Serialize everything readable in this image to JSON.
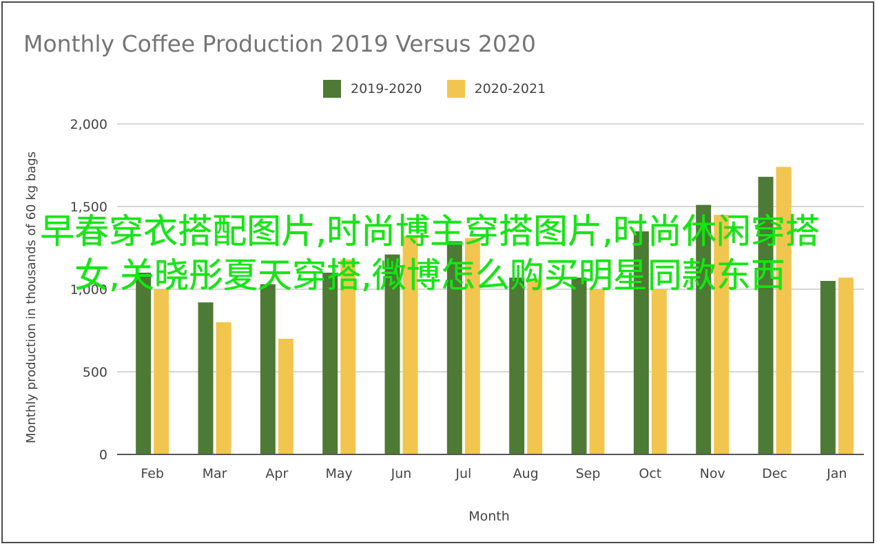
{
  "chart_data": {
    "type": "bar",
    "title": "Monthly Coffee Production 2019 Versus 2020",
    "xlabel": "Month",
    "ylabel": "Monthly production in thousands of 60 kg bags",
    "categories": [
      "Feb",
      "Mar",
      "Apr",
      "May",
      "Jun",
      "Jul",
      "Aug",
      "Sep",
      "Oct",
      "Nov",
      "Dec",
      "Jan"
    ],
    "series": [
      {
        "name": "2019-2020",
        "color": "#4d7a34",
        "values": [
          1100,
          920,
          1030,
          1100,
          1210,
          1290,
          1070,
          1070,
          1350,
          1510,
          1680,
          1050
        ]
      },
      {
        "name": "2020-2021",
        "color": "#f2c64e",
        "values": [
          1000,
          800,
          700,
          1180,
          1320,
          1310,
          1060,
          1000,
          1000,
          1450,
          1740,
          1070
        ]
      }
    ],
    "ylim": [
      0,
      2000
    ],
    "yticks": [
      0,
      500,
      1000,
      1500,
      2000
    ],
    "ytick_labels": [
      "0",
      "500",
      "1,000",
      "1,500",
      "2,000"
    ],
    "grid": true,
    "legend_position": "top-center"
  },
  "overlay": {
    "text": "早春穿衣搭配图片,时尚博主穿搭图片,时尚休闲穿搭女,关晓彤夏天穿搭,微博怎么购买明星同款东西",
    "color": "#14e614"
  }
}
